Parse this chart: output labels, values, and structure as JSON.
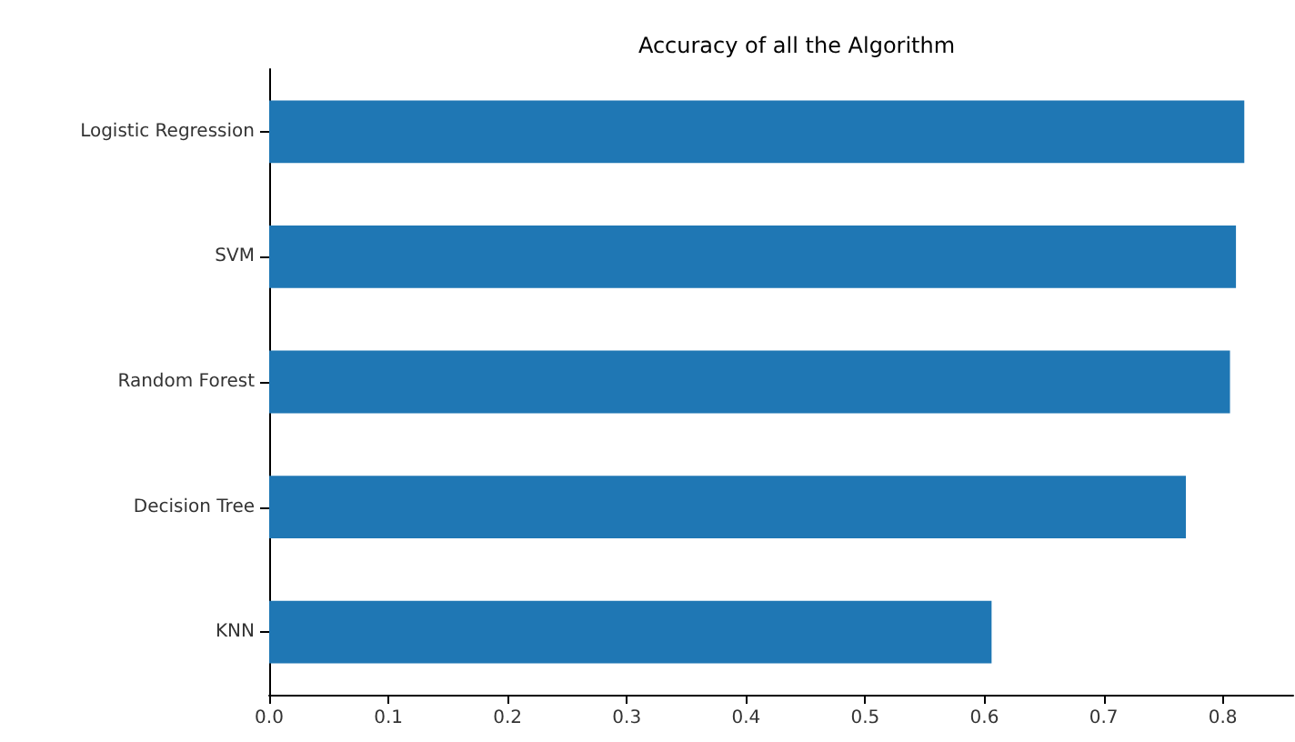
{
  "chart_data": {
    "type": "bar",
    "orientation": "horizontal",
    "title": "Accuracy of all the Algorithm",
    "categories": [
      "Logistic Regression",
      "SVM",
      "Random Forest",
      "Decision Tree",
      "KNN"
    ],
    "values": [
      0.818,
      0.811,
      0.806,
      0.769,
      0.606
    ],
    "color": "#1f77b4",
    "xlim": [
      0,
      0.859
    ],
    "xticks": [
      {
        "value": 0,
        "label": "0.0"
      },
      0.1,
      0.2,
      0.3,
      0.4,
      0.5,
      0.6,
      0.7,
      0.8
    ],
    "grid": false
  }
}
